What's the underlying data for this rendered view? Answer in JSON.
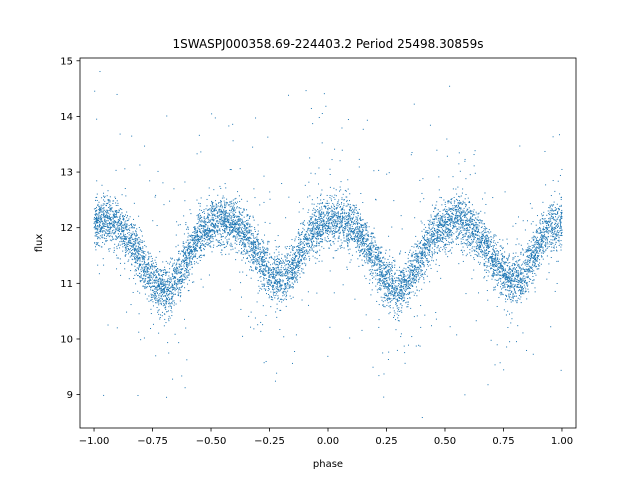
{
  "chart_data": {
    "type": "scatter",
    "title": "1SWASPJ000358.69-224403.2 Period 25498.30859s",
    "xlabel": "phase",
    "ylabel": "flux",
    "xlim": [
      -1.06,
      1.06
    ],
    "ylim": [
      8.4,
      15.05
    ],
    "xticks": [
      -1.0,
      -0.75,
      -0.5,
      -0.25,
      0.0,
      0.25,
      0.5,
      0.75,
      1.0
    ],
    "xtick_labels": [
      "−1.00",
      "−0.75",
      "−0.50",
      "−0.25",
      "0.00",
      "0.25",
      "0.50",
      "0.75",
      "1.00"
    ],
    "yticks": [
      9,
      10,
      11,
      12,
      13,
      14,
      15
    ],
    "ytick_labels": [
      "9",
      "10",
      "11",
      "12",
      "13",
      "14",
      "15"
    ],
    "grid": false,
    "legend": "none",
    "marker_color": "#1f77b4",
    "series": [
      {
        "trend_phase": [
          -1.0,
          -0.95,
          -0.9,
          -0.85,
          -0.8,
          -0.75,
          -0.7,
          -0.65,
          -0.6,
          -0.55,
          -0.5,
          -0.45,
          -0.4,
          -0.35,
          -0.3,
          -0.25,
          -0.2,
          -0.15,
          -0.1,
          -0.05,
          0.0,
          0.05,
          0.1,
          0.15,
          0.2,
          0.25,
          0.3,
          0.35,
          0.4,
          0.45,
          0.5,
          0.55,
          0.6,
          0.65,
          0.7,
          0.75,
          0.8,
          0.85,
          0.9,
          0.95,
          1.0
        ],
        "trend_flux": [
          12.05,
          12.15,
          12.05,
          11.8,
          11.45,
          11.05,
          10.85,
          11.05,
          11.5,
          11.85,
          12.05,
          12.15,
          12.05,
          11.85,
          11.5,
          11.15,
          11.05,
          11.25,
          11.7,
          12.0,
          12.1,
          12.15,
          12.05,
          11.8,
          11.45,
          11.05,
          10.85,
          11.05,
          11.5,
          11.85,
          12.05,
          12.15,
          12.05,
          11.85,
          11.5,
          11.15,
          11.05,
          11.25,
          11.7,
          12.0,
          12.05
        ],
        "scatter_flux": 0.22,
        "outlier_fraction": 0.06,
        "point_count": 9000
      }
    ]
  }
}
